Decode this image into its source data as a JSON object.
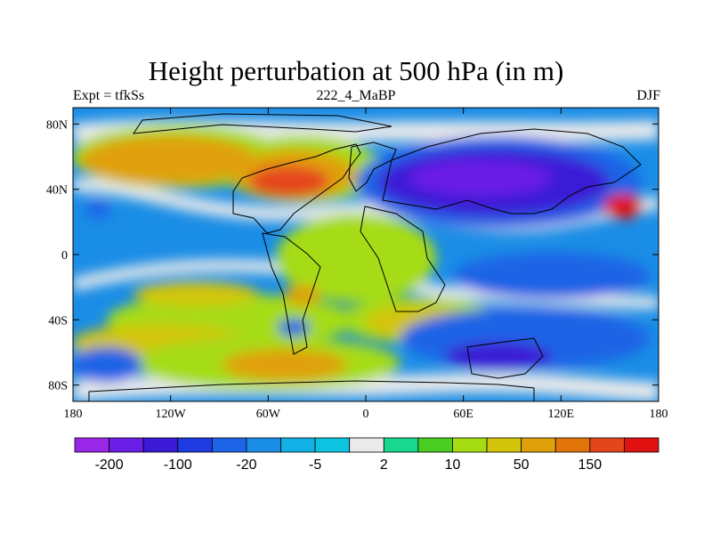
{
  "title": "Height perturbation at 500 hPa (in m)",
  "subtitle_left": "Expt = tfkSs",
  "subtitle_center": "222_4_MaBP",
  "subtitle_right": "DJF",
  "chart_data": {
    "type": "heatmap",
    "title": "Height perturbation at 500 hPa (in m)",
    "variable": "Height perturbation",
    "units": "m",
    "level": "500 hPa",
    "experiment": "tfkSs",
    "run": "222_4_MaBP",
    "season": "DJF",
    "xlim": [
      -180,
      180
    ],
    "ylim": [
      -90,
      90
    ],
    "x_ticks": [
      -180,
      -120,
      -60,
      0,
      60,
      120,
      180
    ],
    "x_tick_labels": [
      "180",
      "120W",
      "60W",
      "0",
      "60E",
      "120E",
      "180"
    ],
    "y_ticks": [
      80,
      40,
      0,
      -40,
      -80
    ],
    "y_tick_labels": [
      "80N",
      "40N",
      "0",
      "40S",
      "80S"
    ],
    "colorbar": {
      "colors": [
        "#9a28e8",
        "#6a1ee6",
        "#3a1ad6",
        "#1f3ae0",
        "#1e64e6",
        "#1a8de6",
        "#12b0e4",
        "#0cc4e0",
        "#eaeaea",
        "#18d890",
        "#4ccd22",
        "#a6dc14",
        "#d2c40a",
        "#e0a00c",
        "#e2740c",
        "#e4461c",
        "#e01212"
      ],
      "labels": [
        "-200",
        "-100",
        "-20",
        "-5",
        "2",
        "10",
        "50",
        "150"
      ]
    }
  }
}
